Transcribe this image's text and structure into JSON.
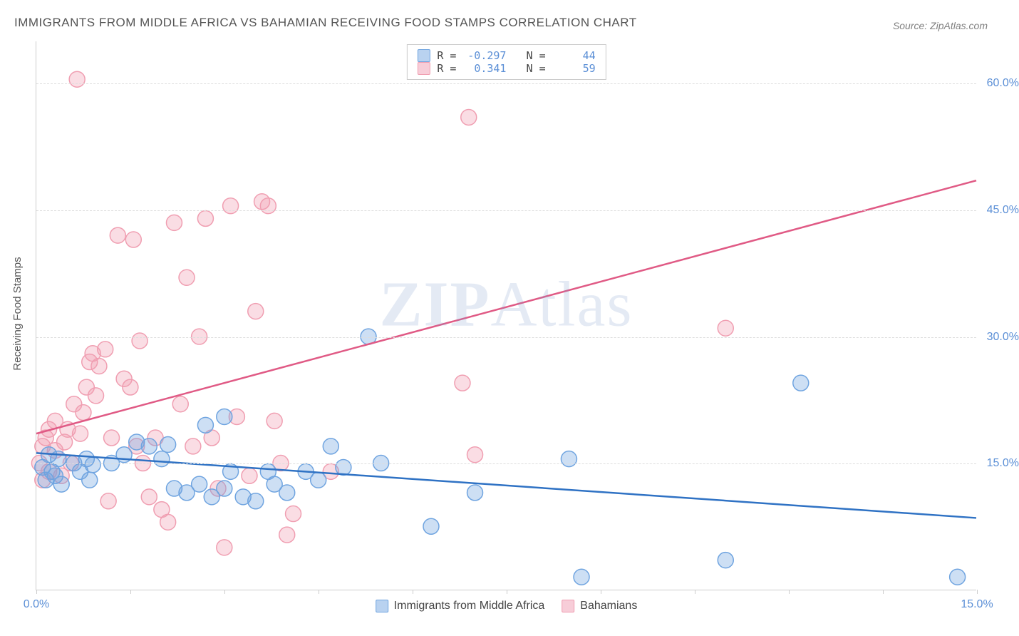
{
  "title": "IMMIGRANTS FROM MIDDLE AFRICA VS BAHAMIAN RECEIVING FOOD STAMPS CORRELATION CHART",
  "source": "Source: ZipAtlas.com",
  "y_axis_label": "Receiving Food Stamps",
  "watermark": "ZIPAtlas",
  "chart": {
    "type": "scatter",
    "background_color": "#ffffff",
    "grid_color": "#dddddd",
    "axis_color": "#cccccc",
    "xlim": [
      0,
      15
    ],
    "ylim": [
      0,
      65
    ],
    "x_ticks": [
      0,
      1.5,
      3,
      4.5,
      6,
      7.5,
      9,
      10.5,
      12,
      13.5,
      15
    ],
    "x_tick_labels": {
      "0": "0.0%",
      "15": "15.0%"
    },
    "y_grid": [
      15,
      30,
      45,
      60
    ],
    "y_tick_labels": {
      "15": "15.0%",
      "30": "30.0%",
      "45": "45.0%",
      "60": "60.0%"
    },
    "marker_radius": 11,
    "marker_fill_opacity": 0.35,
    "marker_stroke_width": 1.5,
    "line_width": 2.5,
    "series": [
      {
        "name": "Immigrants from Middle Africa",
        "color": "#6fa4e0",
        "line_color": "#2f72c4",
        "r": "-0.297",
        "n": "44",
        "trend": {
          "x1": 0,
          "y1": 16.2,
          "x2": 15,
          "y2": 8.5
        },
        "points": [
          [
            0.1,
            14.5
          ],
          [
            0.15,
            13.0
          ],
          [
            0.2,
            16.0
          ],
          [
            0.25,
            14.0
          ],
          [
            0.3,
            13.5
          ],
          [
            0.35,
            15.5
          ],
          [
            0.4,
            12.5
          ],
          [
            0.6,
            15.0
          ],
          [
            0.7,
            14.0
          ],
          [
            0.8,
            15.5
          ],
          [
            0.85,
            13.0
          ],
          [
            0.9,
            14.8
          ],
          [
            1.2,
            15.0
          ],
          [
            1.4,
            16.0
          ],
          [
            1.6,
            17.5
          ],
          [
            1.8,
            17.0
          ],
          [
            2.0,
            15.5
          ],
          [
            2.1,
            17.2
          ],
          [
            2.2,
            12.0
          ],
          [
            2.4,
            11.5
          ],
          [
            2.6,
            12.5
          ],
          [
            2.7,
            19.5
          ],
          [
            2.8,
            11.0
          ],
          [
            3.0,
            20.5
          ],
          [
            3.0,
            12.0
          ],
          [
            3.1,
            14.0
          ],
          [
            3.3,
            11.0
          ],
          [
            3.5,
            10.5
          ],
          [
            3.7,
            14.0
          ],
          [
            3.8,
            12.5
          ],
          [
            4.0,
            11.5
          ],
          [
            4.3,
            14.0
          ],
          [
            4.5,
            13.0
          ],
          [
            4.7,
            17.0
          ],
          [
            4.9,
            14.5
          ],
          [
            5.3,
            30.0
          ],
          [
            5.5,
            15.0
          ],
          [
            6.3,
            7.5
          ],
          [
            7.0,
            11.5
          ],
          [
            8.5,
            15.5
          ],
          [
            8.7,
            1.5
          ],
          [
            11.0,
            3.5
          ],
          [
            12.2,
            24.5
          ],
          [
            14.7,
            1.5
          ]
        ]
      },
      {
        "name": "Bahamians",
        "color": "#f09eb1",
        "line_color": "#e05a85",
        "r": "0.341",
        "n": "59",
        "trend": {
          "x1": 0,
          "y1": 18.5,
          "x2": 15,
          "y2": 48.5
        },
        "points": [
          [
            0.05,
            15.0
          ],
          [
            0.1,
            17.0
          ],
          [
            0.1,
            13.0
          ],
          [
            0.15,
            18.0
          ],
          [
            0.2,
            14.0
          ],
          [
            0.2,
            19.0
          ],
          [
            0.3,
            16.5
          ],
          [
            0.3,
            20.0
          ],
          [
            0.4,
            13.5
          ],
          [
            0.45,
            17.5
          ],
          [
            0.5,
            19.0
          ],
          [
            0.55,
            15.0
          ],
          [
            0.6,
            22.0
          ],
          [
            0.65,
            60.5
          ],
          [
            0.7,
            18.5
          ],
          [
            0.75,
            21.0
          ],
          [
            0.8,
            24.0
          ],
          [
            0.85,
            27.0
          ],
          [
            0.9,
            28.0
          ],
          [
            0.95,
            23.0
          ],
          [
            1.0,
            26.5
          ],
          [
            1.1,
            28.5
          ],
          [
            1.15,
            10.5
          ],
          [
            1.2,
            18.0
          ],
          [
            1.3,
            42.0
          ],
          [
            1.4,
            25.0
          ],
          [
            1.5,
            24.0
          ],
          [
            1.55,
            41.5
          ],
          [
            1.6,
            17.0
          ],
          [
            1.65,
            29.5
          ],
          [
            1.7,
            15.0
          ],
          [
            1.8,
            11.0
          ],
          [
            1.9,
            18.0
          ],
          [
            2.0,
            9.5
          ],
          [
            2.1,
            8.0
          ],
          [
            2.2,
            43.5
          ],
          [
            2.3,
            22.0
          ],
          [
            2.4,
            37.0
          ],
          [
            2.5,
            17.0
          ],
          [
            2.6,
            30.0
          ],
          [
            2.7,
            44.0
          ],
          [
            2.8,
            18.0
          ],
          [
            2.9,
            12.0
          ],
          [
            3.0,
            5.0
          ],
          [
            3.1,
            45.5
          ],
          [
            3.2,
            20.5
          ],
          [
            3.4,
            13.5
          ],
          [
            3.5,
            33.0
          ],
          [
            3.6,
            46.0
          ],
          [
            3.7,
            45.5
          ],
          [
            3.8,
            20.0
          ],
          [
            3.9,
            15.0
          ],
          [
            4.0,
            6.5
          ],
          [
            4.1,
            9.0
          ],
          [
            4.7,
            14.0
          ],
          [
            6.8,
            24.5
          ],
          [
            6.9,
            56.0
          ],
          [
            7.0,
            16.0
          ],
          [
            11.0,
            31.0
          ]
        ]
      }
    ]
  },
  "legend_bottom": [
    {
      "label": "Immigrants from Middle Africa",
      "color_fill": "#b9d2f0",
      "color_stroke": "#6fa4e0"
    },
    {
      "label": "Bahamians",
      "color_fill": "#f7cdd8",
      "color_stroke": "#f09eb1"
    }
  ]
}
